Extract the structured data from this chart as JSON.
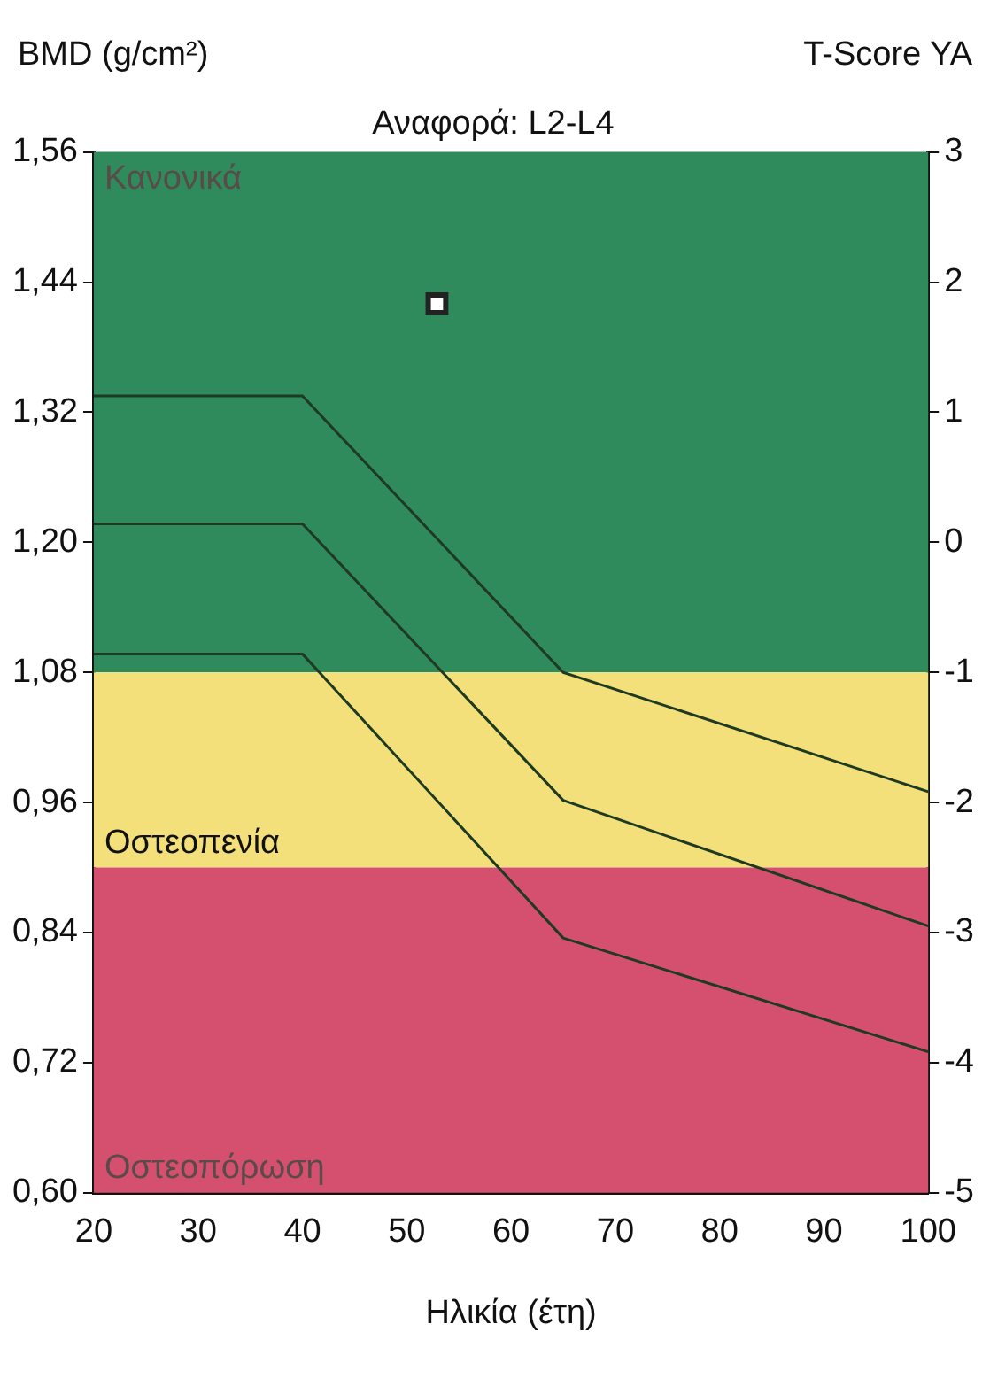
{
  "chart_data": {
    "type": "line",
    "title": "Αναφορά: L2-L4",
    "xlabel": "Ηλικία (έτη)",
    "ylabel": "BMD (g/cm²)",
    "y2label": "T-Score YA",
    "xlim": [
      20,
      100
    ],
    "xticks": [
      20,
      30,
      40,
      50,
      60,
      70,
      80,
      90,
      100
    ],
    "ylim": [
      0.6,
      1.56
    ],
    "yticks": [
      {
        "value": 0.6,
        "label": "0,60"
      },
      {
        "value": 0.72,
        "label": "0,72"
      },
      {
        "value": 0.84,
        "label": "0,84"
      },
      {
        "value": 0.96,
        "label": "0,96"
      },
      {
        "value": 1.08,
        "label": "1,08"
      },
      {
        "value": 1.2,
        "label": "1,20"
      },
      {
        "value": 1.32,
        "label": "1,32"
      },
      {
        "value": 1.44,
        "label": "1,44"
      },
      {
        "value": 1.56,
        "label": "1,56"
      }
    ],
    "y2lim": [
      -5,
      3
    ],
    "y2ticks": [
      -5,
      -4,
      -3,
      -2,
      -1,
      0,
      1,
      2,
      3
    ],
    "bands": [
      {
        "axis": "y",
        "from": 1.08,
        "to": 1.56,
        "label": "Κανονικά",
        "color": "#2f8a5c"
      },
      {
        "axis": "y",
        "from": 0.9,
        "to": 1.08,
        "label": "Οστεοπενία",
        "color": "#f4e07a"
      },
      {
        "axis": "y",
        "from": 0.6,
        "to": 0.9,
        "label": "Οστεοπόρωση",
        "color": "#d4506e"
      }
    ],
    "series": [
      {
        "type": "line",
        "color": "#1e3a22",
        "x": [
          20,
          40,
          65,
          100
        ],
        "values": [
          1.335,
          1.335,
          1.08,
          0.97
        ]
      },
      {
        "type": "line",
        "color": "#1e3a22",
        "x": [
          20,
          40,
          65,
          100
        ],
        "values": [
          1.217,
          1.217,
          0.962,
          0.846
        ]
      },
      {
        "type": "line",
        "color": "#1e3a22",
        "x": [
          20,
          40,
          65,
          100
        ],
        "values": [
          1.097,
          1.097,
          0.835,
          0.73
        ]
      },
      {
        "type": "scatter",
        "color": "#222222",
        "marker": "square",
        "x": [
          52.9
        ],
        "values": [
          1.42
        ]
      }
    ],
    "grid": false,
    "legend": false,
    "marker": "none",
    "line_style": "solid"
  }
}
